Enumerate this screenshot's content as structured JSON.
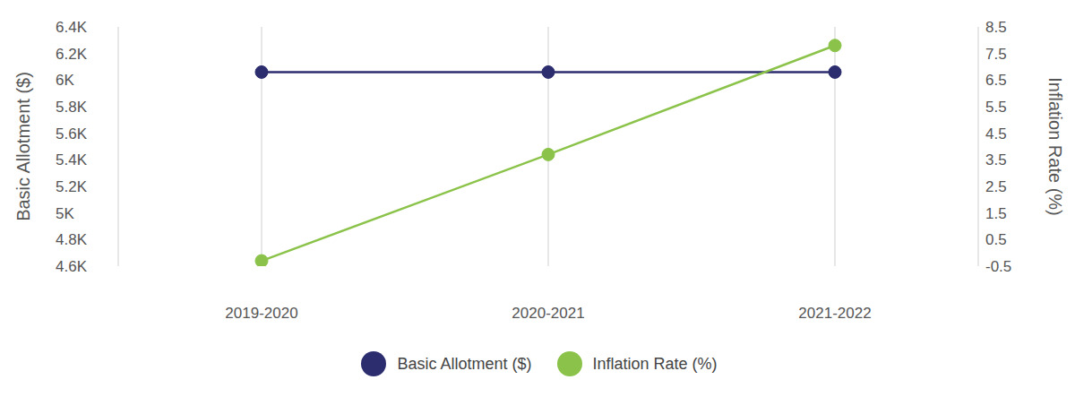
{
  "chart_data": {
    "type": "line",
    "categories": [
      "2019-2020",
      "2020-2021",
      "2021-2022"
    ],
    "series": [
      {
        "name": "Basic Allotment ($)",
        "color": "#2b2d6e",
        "values": [
          6060,
          6060,
          6060
        ],
        "marker": "circle"
      },
      {
        "name": "Inflation Rate (%)",
        "color": "#8bc34a",
        "values": [
          -0.3,
          3.7,
          7.8
        ],
        "axis": "y2",
        "marker": "circle"
      }
    ],
    "ylabel": "Basic Allotment ($)",
    "y2label": "Inflation Rate (%)",
    "ylim": [
      4600,
      6400
    ],
    "yticks": [
      {
        "value": 4600,
        "label": "4.6K"
      },
      {
        "value": 4800,
        "label": "4.8K"
      },
      {
        "value": 5000,
        "label": "5K"
      },
      {
        "value": 5200,
        "label": "5.2K"
      },
      {
        "value": 5400,
        "label": "5.4K"
      },
      {
        "value": 5600,
        "label": "5.6K"
      },
      {
        "value": 5800,
        "label": "5.8K"
      },
      {
        "value": 6000,
        "label": "6K"
      },
      {
        "value": 6200,
        "label": "6.2K"
      },
      {
        "value": 6400,
        "label": "6.4K"
      }
    ],
    "y2lim": [
      -0.5,
      8.5
    ],
    "y2ticks": [
      -0.5,
      0.5,
      1.5,
      2.5,
      3.5,
      4.5,
      5.5,
      6.5,
      7.5,
      8.5
    ],
    "grid": "x",
    "legend": "bottom"
  }
}
